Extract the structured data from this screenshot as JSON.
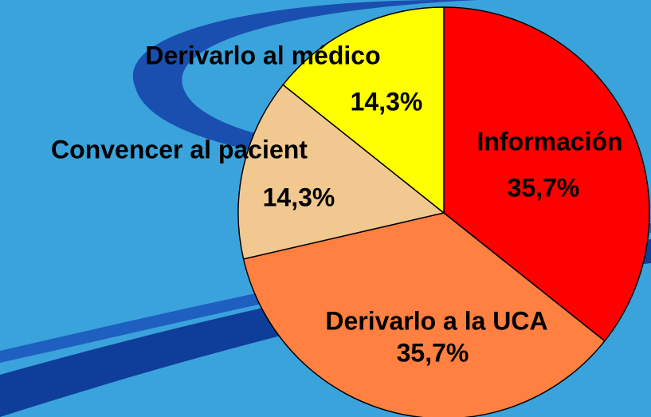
{
  "chart_data": {
    "type": "pie",
    "categories": [
      "Información",
      "Derivarlo a la UCA",
      "Convencer al pacient",
      "Derivarlo al médico"
    ],
    "values": [
      35.7,
      35.7,
      14.3,
      14.3
    ],
    "value_labels": [
      "35,7%",
      "35,7%",
      "14,3%",
      "14,3%"
    ],
    "colors": [
      "#ff0000",
      "#ff8040",
      "#f0c890",
      "#ffff00"
    ]
  }
}
